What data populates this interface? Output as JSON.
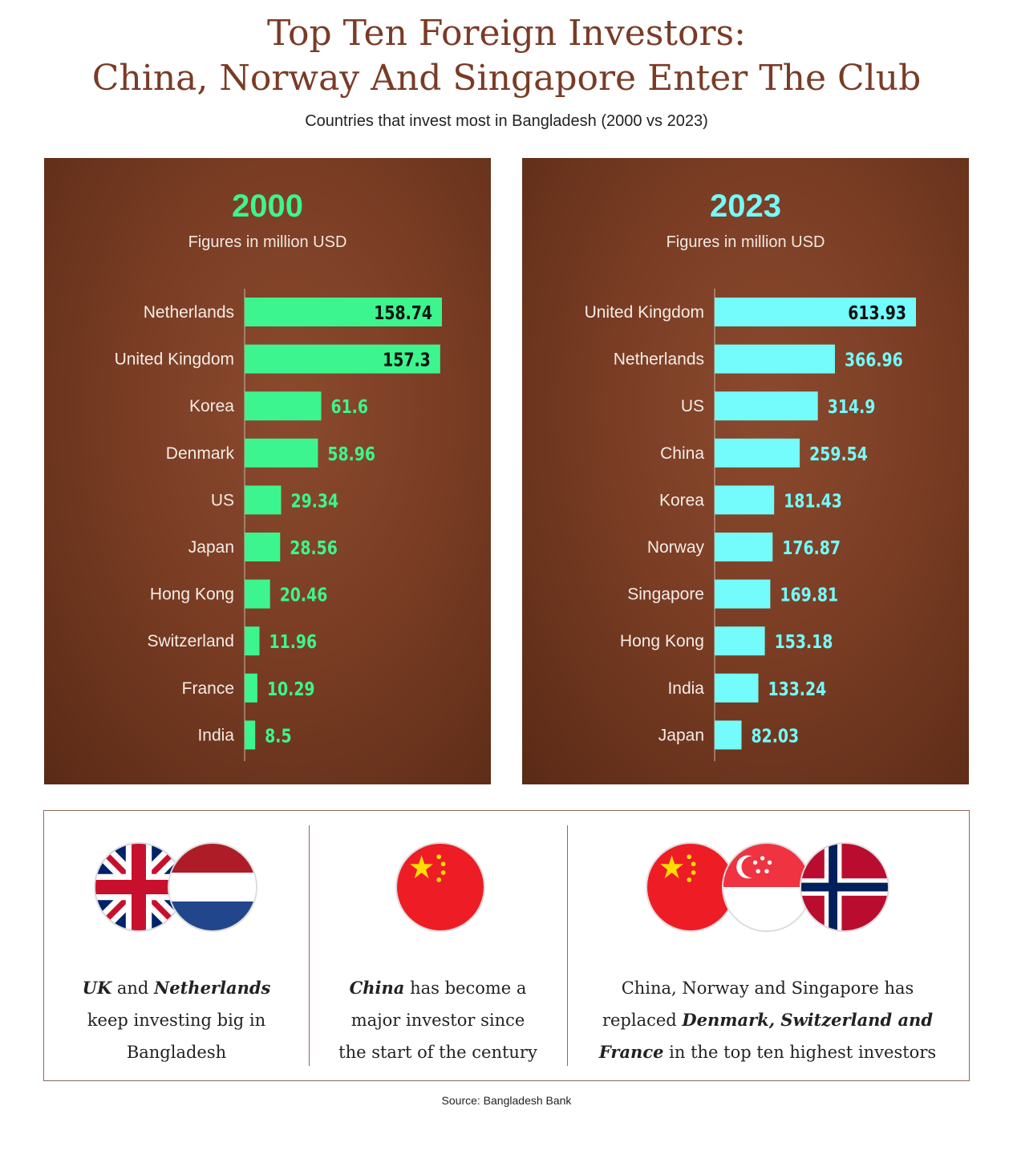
{
  "header": {
    "title_line1": "Top Ten Foreign Investors:",
    "title_line2": "China, Norway And Singapore Enter The Club",
    "subtitle": "Countries that invest most in Bangladesh (2000 vs 2023)"
  },
  "colors": {
    "title": "#7a3b26",
    "bar_2000": "#3cf58e",
    "bar_2023": "#74fbfb"
  },
  "chart_data": [
    {
      "type": "bar",
      "orientation": "horizontal",
      "title": "2000",
      "subtitle": "Figures in million USD",
      "categories": [
        "Netherlands",
        "United Kingdom",
        "Korea",
        "Denmark",
        "US",
        "Japan",
        "Hong Kong",
        "Switzerland",
        "France",
        "India"
      ],
      "values": [
        158.74,
        157.3,
        61.6,
        58.96,
        29.34,
        28.56,
        20.46,
        11.96,
        10.29,
        8.5
      ],
      "value_labels": [
        "158.74",
        "157.3",
        "61.6",
        "58.96",
        "29.34",
        "28.56",
        "20.46",
        "11.96",
        "10.29",
        "8.5"
      ],
      "color": "#3cf58e"
    },
    {
      "type": "bar",
      "orientation": "horizontal",
      "title": "2023",
      "subtitle": "Figures in million USD",
      "categories": [
        "United Kingdom",
        "Netherlands",
        "US",
        "China",
        "Korea",
        "Norway",
        "Singapore",
        "Hong Kong",
        "India",
        "Japan"
      ],
      "values": [
        613.93,
        366.96,
        314.9,
        259.54,
        181.43,
        176.87,
        169.81,
        153.18,
        133.24,
        82.03
      ],
      "value_labels": [
        "613.93",
        "366.96",
        "314.9",
        "259.54",
        "181.43",
        "176.87",
        "169.81",
        "153.18",
        "133.24",
        "82.03"
      ],
      "color": "#74fbfb"
    }
  ],
  "notes": [
    {
      "flags": [
        "uk-flag-icon",
        "netherlands-flag-icon"
      ],
      "text_html": "<b>UK</b> and <b>Netherlands</b><br>keep investing big in<br>Bangladesh"
    },
    {
      "flags": [
        "china-flag-icon"
      ],
      "text_html": "<b>China</b> has become a<br>major investor since<br>the start of the century"
    },
    {
      "flags": [
        "china-flag-icon",
        "singapore-flag-icon",
        "norway-flag-icon"
      ],
      "text_html": "China, Norway and Singapore has<br>replaced <b>Denmark, Switzerland and<br>France</b> in the top ten highest investors"
    }
  ],
  "source": "Source: Bangladesh Bank"
}
